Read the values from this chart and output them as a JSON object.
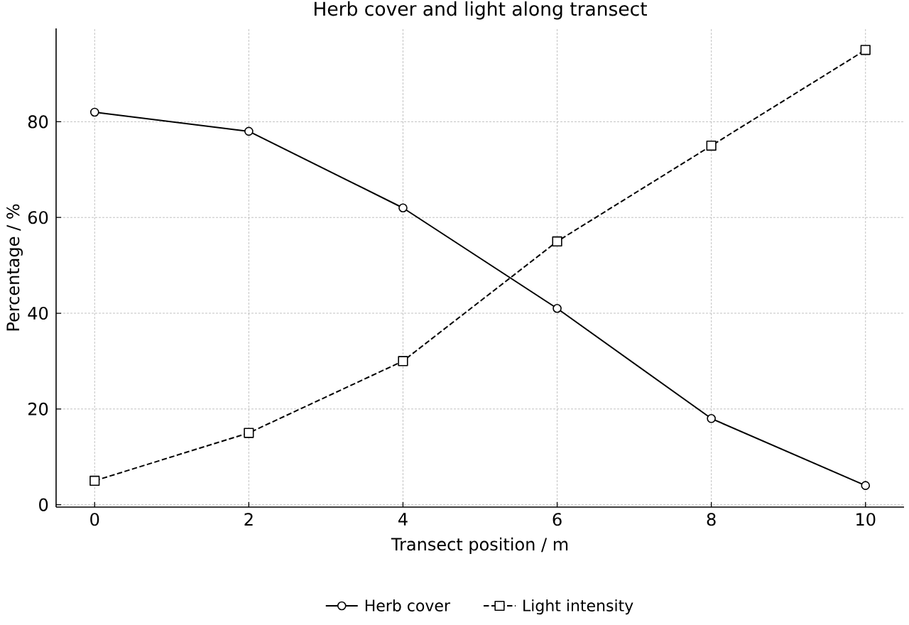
{
  "chart_data": {
    "type": "line",
    "title": "Herb cover and light along transect",
    "xlabel": "Transect position / m",
    "ylabel": "Percentage / %",
    "x": [
      0,
      2,
      4,
      6,
      8,
      10
    ],
    "series": [
      {
        "name": "Herb cover",
        "color": "#000000",
        "values": [
          82,
          78,
          62,
          41,
          18,
          4
        ],
        "marker": "circle",
        "line_style": "solid"
      },
      {
        "name": "Light intensity",
        "color": "#000000",
        "values": [
          5,
          15,
          30,
          55,
          75,
          95
        ],
        "marker": "square",
        "line_style": "dashed"
      }
    ],
    "xlim": [
      -0.5,
      10.5
    ],
    "ylim": [
      -0.5,
      99.5
    ],
    "xticks": [
      0,
      2,
      4,
      6,
      8,
      10
    ],
    "yticks": [
      0,
      20,
      40,
      60,
      80
    ],
    "grid": true,
    "legend": "bottom"
  }
}
